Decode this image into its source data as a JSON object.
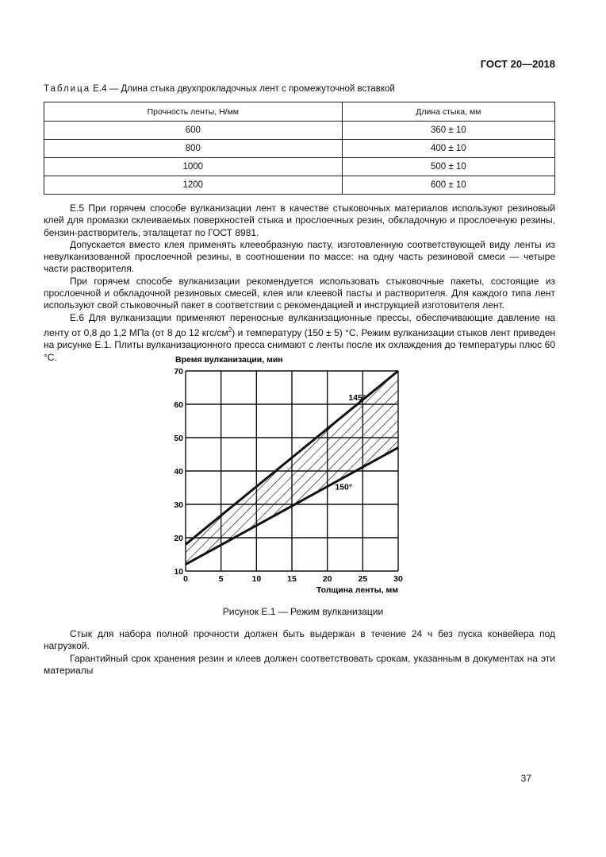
{
  "header": {
    "doc_id": "ГОСТ 20—2018"
  },
  "table": {
    "title_prefix": "Таблица",
    "title": " Е.4 — Длина стыка двухпрокладочных лент с промежуточной вставкой",
    "columns": [
      "Прочность ленты, Н/мм",
      "Длина стыка, мм"
    ],
    "rows": [
      [
        "600",
        "360 ± 10"
      ],
      [
        "800",
        "400 ± 10"
      ],
      [
        "1000",
        "500 ± 10"
      ],
      [
        "1200",
        "600 ± 10"
      ]
    ]
  },
  "paragraphs": {
    "p1": "Е.5 При горячем способе вулканизации лент в качестве стыковочных материалов используют резиновый клей для промазки склеиваемых поверхностей стыка и прослоечных резин, обкладочную и прослоечную резины, бензин-растворитель, эталацетат по ГОСТ 8981.",
    "p2": "Допускается вместо клея применять клееобразную пасту, изготовленную соответствующей виду ленты из невулканизованной прослоечной резины, в соотношении по массе: на одну часть резиновой смеси — четыре части растворителя.",
    "p3": "При горячем способе вулканизации рекомендуется использовать стыковочные пакеты, состоящие из прослоечной и обкладочной резиновых смесей, клея или клеевой пасты и растворителя. Для каждого типа лент используют свой стыковочный пакет в соответствии с рекомендацией и инструкцией изготовителя лент.",
    "p4_a": "Е.6 Для вулканизации применяют переносные вулканизационные прессы, обеспечивающие давление на ленту от 0,8 до 1,2 МПа (от 8 до 12 кгс/см",
    "p4_sup": "2",
    "p4_b": ") и температуру (150 ± 5) °С. Режим вулканизации стыков лент приведен на рисунке Е.1. Плиты вулканизационного пресса снимают с ленты после их охлаждения до температуры плюс 60 °С.",
    "p5": "Стык для набора полной прочности должен быть выдержан в течение 24 ч без пуска конвейера под нагрузкой.",
    "p6": "Гарантийный срок хранения резин и клеев должен соответствовать срокам, указанным в документах на эти материалы"
  },
  "figure": {
    "caption": "Рисунок Е.1 — Режим вулканизации"
  },
  "chart_data": {
    "type": "line",
    "title": "",
    "ylabel": "Время вулканизации, мин",
    "xlabel": "Толщина ленты, мм",
    "xlim": [
      0,
      30
    ],
    "ylim": [
      10,
      70
    ],
    "xticks": [
      0,
      5,
      10,
      15,
      20,
      25,
      30
    ],
    "yticks": [
      10,
      20,
      30,
      40,
      50,
      60,
      70
    ],
    "grid": true,
    "series": [
      {
        "name": "145°",
        "x": [
          0,
          30
        ],
        "y": [
          18,
          70
        ]
      },
      {
        "name": "150°",
        "x": [
          0,
          30
        ],
        "y": [
          12,
          47
        ]
      }
    ],
    "fill_between": "hatched",
    "line_color": "#111111"
  },
  "footer": {
    "page_number": "37"
  }
}
